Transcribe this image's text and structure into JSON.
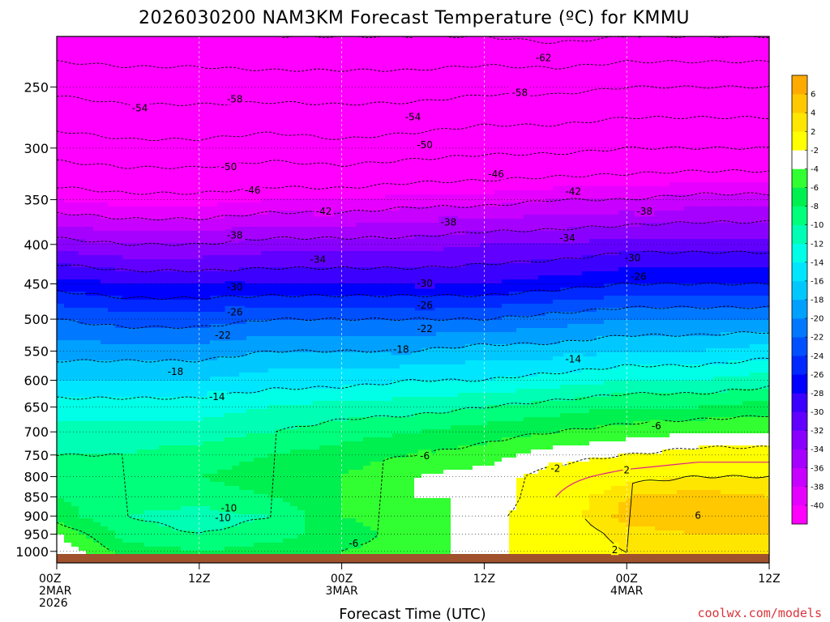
{
  "chart_data": {
    "type": "heatmap",
    "title": "2026030200 NAM3KM Forecast Temperature (ºC) for KMMU",
    "xlabel": "Forecast Time (UTC)",
    "ylabel": "",
    "y_scale": "log-pressure",
    "y_inverted": true,
    "ylim": [
      215,
      1035
    ],
    "xlim": [
      0,
      60
    ],
    "x_ticks": [
      {
        "value": 0,
        "lines": [
          "00Z",
          "2MAR",
          "2026"
        ]
      },
      {
        "value": 12,
        "lines": [
          "12Z"
        ]
      },
      {
        "value": 24,
        "lines": [
          "00Z",
          "3MAR"
        ]
      },
      {
        "value": 36,
        "lines": [
          "12Z"
        ]
      },
      {
        "value": 48,
        "lines": [
          "00Z",
          "4MAR"
        ]
      },
      {
        "value": 60,
        "lines": [
          "12Z"
        ]
      }
    ],
    "y_ticks": [
      250,
      300,
      350,
      400,
      450,
      500,
      550,
      600,
      650,
      700,
      750,
      800,
      850,
      900,
      950,
      1000
    ],
    "grid": true,
    "colorbar": {
      "levels": [
        -40,
        -38,
        -36,
        -34,
        -32,
        -30,
        -28,
        -26,
        -24,
        -22,
        -20,
        -18,
        -16,
        -14,
        -12,
        -10,
        -8,
        -6,
        -4,
        -2,
        2,
        4,
        6
      ],
      "colors": [
        "#ff00ff",
        "#e600ff",
        "#c800ff",
        "#a600ff",
        "#8a00ff",
        "#6200ff",
        "#3c00ff",
        "#0000ff",
        "#0028ff",
        "#0050ff",
        "#0078ff",
        "#00a0ff",
        "#00c8ff",
        "#00e6ff",
        "#00ffe6",
        "#00ffb4",
        "#00ff7a",
        "#00f050",
        "#32ff32",
        "#ffffff",
        "#ffff00",
        "#ffe600",
        "#ffc800",
        "#ffaa00"
      ]
    },
    "profiles": [
      {
        "x": 0,
        "temps": [
          [
            1000,
            -2
          ],
          [
            950,
            -4
          ],
          [
            900,
            -7
          ],
          [
            850,
            -8
          ],
          [
            800,
            -9
          ],
          [
            750,
            -10
          ],
          [
            700,
            -11
          ],
          [
            650,
            -13
          ],
          [
            600,
            -16
          ],
          [
            550,
            -19
          ],
          [
            500,
            -22
          ],
          [
            450,
            -27
          ],
          [
            400,
            -33
          ],
          [
            350,
            -40
          ],
          [
            300,
            -48
          ],
          [
            250,
            -55
          ],
          [
            215,
            -61
          ]
        ]
      },
      {
        "x": 6,
        "temps": [
          [
            1000,
            -7
          ],
          [
            950,
            -9
          ],
          [
            900,
            -10
          ],
          [
            850,
            -9
          ],
          [
            800,
            -9
          ],
          [
            750,
            -10
          ],
          [
            700,
            -11
          ],
          [
            650,
            -13
          ],
          [
            600,
            -16
          ],
          [
            550,
            -19
          ],
          [
            500,
            -23
          ],
          [
            450,
            -28
          ],
          [
            400,
            -34
          ],
          [
            350,
            -41
          ],
          [
            300,
            -49
          ],
          [
            250,
            -56
          ],
          [
            215,
            -61
          ]
        ]
      },
      {
        "x": 12,
        "temps": [
          [
            1000,
            -8
          ],
          [
            950,
            -10
          ],
          [
            900,
            -11
          ],
          [
            850,
            -9
          ],
          [
            800,
            -8
          ],
          [
            750,
            -9
          ],
          [
            700,
            -11
          ],
          [
            650,
            -13
          ],
          [
            600,
            -16
          ],
          [
            550,
            -19
          ],
          [
            500,
            -23
          ],
          [
            450,
            -28
          ],
          [
            400,
            -34
          ],
          [
            350,
            -41
          ],
          [
            300,
            -49
          ],
          [
            250,
            -56
          ],
          [
            215,
            -61
          ]
        ]
      },
      {
        "x": 18,
        "temps": [
          [
            1000,
            -7
          ],
          [
            950,
            -9
          ],
          [
            900,
            -10
          ],
          [
            850,
            -8
          ],
          [
            800,
            -7
          ],
          [
            750,
            -8
          ],
          [
            700,
            -10
          ],
          [
            650,
            -12
          ],
          [
            600,
            -15
          ],
          [
            550,
            -18
          ],
          [
            500,
            -22
          ],
          [
            450,
            -28
          ],
          [
            400,
            -33
          ],
          [
            350,
            -40
          ],
          [
            300,
            -48
          ],
          [
            250,
            -56
          ],
          [
            215,
            -62
          ]
        ]
      },
      {
        "x": 24,
        "temps": [
          [
            1000,
            -6
          ],
          [
            950,
            -7
          ],
          [
            900,
            -6
          ],
          [
            850,
            -6
          ],
          [
            800,
            -6
          ],
          [
            750,
            -7
          ],
          [
            700,
            -9
          ],
          [
            650,
            -11
          ],
          [
            600,
            -15
          ],
          [
            550,
            -18
          ],
          [
            500,
            -22
          ],
          [
            450,
            -28
          ],
          [
            400,
            -33
          ],
          [
            350,
            -40
          ],
          [
            300,
            -49
          ],
          [
            250,
            -56
          ],
          [
            215,
            -62
          ]
        ]
      },
      {
        "x": 30,
        "temps": [
          [
            1000,
            -5
          ],
          [
            950,
            -5
          ],
          [
            900,
            -5
          ],
          [
            850,
            -4
          ],
          [
            800,
            -4
          ],
          [
            750,
            -6
          ],
          [
            700,
            -8
          ],
          [
            650,
            -11
          ],
          [
            600,
            -14
          ],
          [
            550,
            -18
          ],
          [
            500,
            -22
          ],
          [
            450,
            -28
          ],
          [
            400,
            -33
          ],
          [
            350,
            -39
          ],
          [
            300,
            -48
          ],
          [
            250,
            -56
          ],
          [
            215,
            -62
          ]
        ]
      },
      {
        "x": 36,
        "temps": [
          [
            1000,
            -3
          ],
          [
            950,
            -3
          ],
          [
            900,
            -3
          ],
          [
            850,
            -4
          ],
          [
            800,
            -3
          ],
          [
            750,
            -5
          ],
          [
            700,
            -7
          ],
          [
            650,
            -10
          ],
          [
            600,
            -14
          ],
          [
            550,
            -17
          ],
          [
            500,
            -22
          ],
          [
            450,
            -28
          ],
          [
            400,
            -32
          ],
          [
            350,
            -39
          ],
          [
            300,
            -47
          ],
          [
            250,
            -55
          ],
          [
            215,
            -62
          ]
        ]
      },
      {
        "x": 42,
        "temps": [
          [
            1000,
            0
          ],
          [
            950,
            0
          ],
          [
            900,
            0
          ],
          [
            850,
            0
          ],
          [
            800,
            -1
          ],
          [
            750,
            -3
          ],
          [
            700,
            -6
          ],
          [
            650,
            -9
          ],
          [
            600,
            -13
          ],
          [
            550,
            -17
          ],
          [
            500,
            -21
          ],
          [
            450,
            -27
          ],
          [
            400,
            -32
          ],
          [
            350,
            -38
          ],
          [
            300,
            -47
          ],
          [
            250,
            -55
          ],
          [
            215,
            -63
          ]
        ]
      },
      {
        "x": 48,
        "temps": [
          [
            1000,
            2
          ],
          [
            950,
            3
          ],
          [
            900,
            5
          ],
          [
            850,
            4
          ],
          [
            800,
            1
          ],
          [
            750,
            -2
          ],
          [
            700,
            -5
          ],
          [
            650,
            -8
          ],
          [
            600,
            -12
          ],
          [
            550,
            -16
          ],
          [
            500,
            -20
          ],
          [
            450,
            -26
          ],
          [
            400,
            -31
          ],
          [
            350,
            -38
          ],
          [
            300,
            -46
          ],
          [
            250,
            -54
          ],
          [
            215,
            -62
          ]
        ]
      },
      {
        "x": 54,
        "temps": [
          [
            1000,
            3
          ],
          [
            950,
            4
          ],
          [
            900,
            6
          ],
          [
            850,
            5
          ],
          [
            800,
            2
          ],
          [
            750,
            -1
          ],
          [
            700,
            -4
          ],
          [
            650,
            -8
          ],
          [
            600,
            -12
          ],
          [
            550,
            -16
          ],
          [
            500,
            -20
          ],
          [
            450,
            -26
          ],
          [
            400,
            -31
          ],
          [
            350,
            -37
          ],
          [
            300,
            -46
          ],
          [
            250,
            -54
          ],
          [
            215,
            -62
          ]
        ]
      },
      {
        "x": 60,
        "temps": [
          [
            1000,
            3
          ],
          [
            950,
            4
          ],
          [
            900,
            5
          ],
          [
            850,
            4
          ],
          [
            800,
            2
          ],
          [
            750,
            -1
          ],
          [
            700,
            -4
          ],
          [
            650,
            -7
          ],
          [
            600,
            -11
          ],
          [
            550,
            -15
          ],
          [
            500,
            -20
          ],
          [
            450,
            -26
          ],
          [
            400,
            -31
          ],
          [
            350,
            -37
          ],
          [
            300,
            -46
          ],
          [
            250,
            -54
          ],
          [
            215,
            -62
          ]
        ]
      }
    ],
    "contour_labels": [
      {
        "x": 41,
        "p": 229,
        "text": "-62"
      },
      {
        "x": 15,
        "p": 259,
        "text": "-58"
      },
      {
        "x": 39,
        "p": 254,
        "text": "-58"
      },
      {
        "x": 7,
        "p": 266,
        "text": "-54"
      },
      {
        "x": 30,
        "p": 273,
        "text": "-54"
      },
      {
        "x": 14.5,
        "p": 317,
        "text": "-50"
      },
      {
        "x": 31,
        "p": 297,
        "text": "-50"
      },
      {
        "x": 16.5,
        "p": 340,
        "text": "-46"
      },
      {
        "x": 37,
        "p": 324,
        "text": "-46"
      },
      {
        "x": 22.5,
        "p": 362,
        "text": "-42"
      },
      {
        "x": 43.5,
        "p": 341,
        "text": "-42"
      },
      {
        "x": 15,
        "p": 389,
        "text": "-38"
      },
      {
        "x": 33,
        "p": 374,
        "text": "-38"
      },
      {
        "x": 49.5,
        "p": 362,
        "text": "-38"
      },
      {
        "x": 22,
        "p": 418,
        "text": "-34"
      },
      {
        "x": 43,
        "p": 392,
        "text": "-34"
      },
      {
        "x": 15,
        "p": 454,
        "text": "-30"
      },
      {
        "x": 31,
        "p": 449,
        "text": "-30"
      },
      {
        "x": 48.5,
        "p": 416,
        "text": "-30"
      },
      {
        "x": 15,
        "p": 489,
        "text": "-26"
      },
      {
        "x": 31,
        "p": 479,
        "text": "-26"
      },
      {
        "x": 49,
        "p": 440,
        "text": "-26"
      },
      {
        "x": 14,
        "p": 524,
        "text": "-22"
      },
      {
        "x": 31,
        "p": 514,
        "text": "-22"
      },
      {
        "x": 10,
        "p": 584,
        "text": "-18"
      },
      {
        "x": 29,
        "p": 547,
        "text": "-18"
      },
      {
        "x": 13.5,
        "p": 630,
        "text": "-14"
      },
      {
        "x": 43.5,
        "p": 563,
        "text": "-14"
      },
      {
        "x": 50.5,
        "p": 687,
        "text": "-6"
      },
      {
        "x": 31,
        "p": 751,
        "text": "-6"
      },
      {
        "x": 25,
        "p": 975,
        "text": "-6"
      },
      {
        "x": 14.5,
        "p": 878,
        "text": "-10"
      },
      {
        "x": 14,
        "p": 904,
        "text": "-10"
      },
      {
        "x": 42,
        "p": 780,
        "text": "-2"
      },
      {
        "x": 48,
        "p": 784,
        "text": "2"
      },
      {
        "x": 47,
        "p": 994,
        "text": "2"
      },
      {
        "x": 54,
        "p": 897,
        "text": "6"
      }
    ]
  },
  "credit": "coolwx.com/models"
}
